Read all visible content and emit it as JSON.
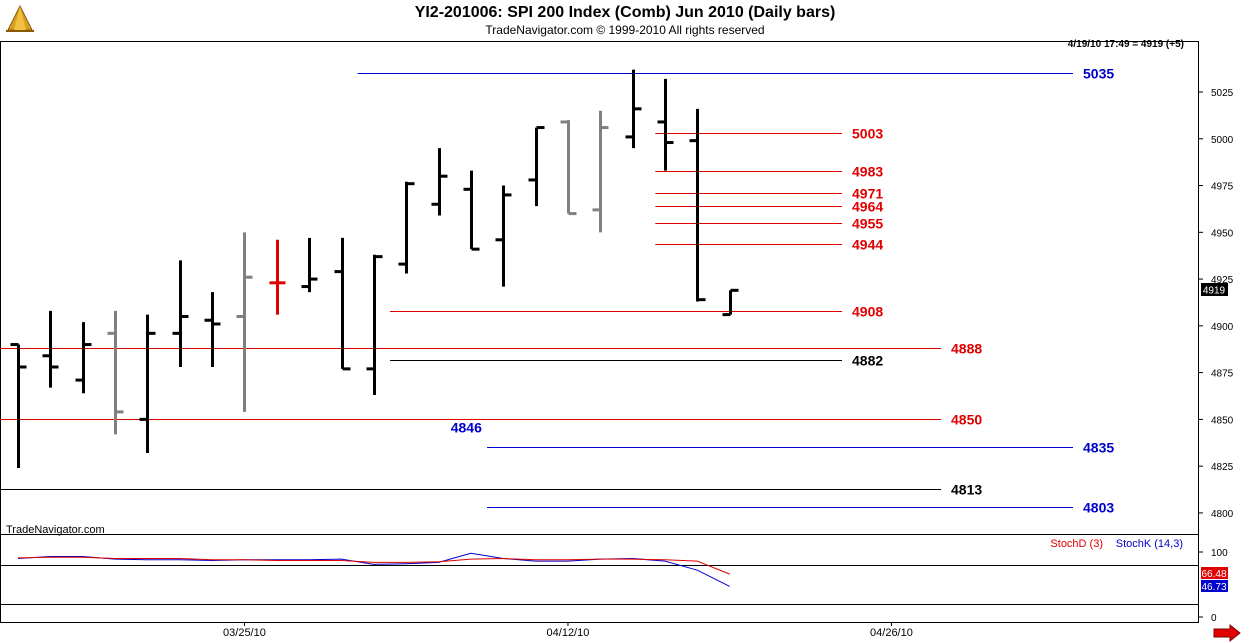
{
  "title": "YI2-201006:  SPI 200 Index (Comb) Jun 2010  (Daily bars)",
  "subtitle": "TradeNavigator.com © 1999-2010 All rights reserved",
  "quote_readout": "4/19/10 17:49 = 4919 (+5)",
  "watermark": "TradeNavigator.com",
  "last_price_label": "4919",
  "icons": {
    "logo": "pyramid-logo-icon",
    "scroll": "arrow-right-icon"
  },
  "colors": {
    "up": "#000000",
    "neutral": "#808080",
    "highlight": "#e00000",
    "level_red": "#e00000",
    "level_blue": "#0000cc",
    "level_black": "#000000",
    "stochD": "#e00000",
    "stochK": "#0000cc"
  },
  "chart_data": {
    "type": "ohlc",
    "price_axis": {
      "ylim": [
        4793,
        5048
      ],
      "ticks": [
        4800,
        4825,
        4850,
        4875,
        4900,
        4925,
        4950,
        4975,
        5000,
        5025
      ]
    },
    "date_labels": [
      {
        "label": "03/25/10",
        "bar": 7
      },
      {
        "label": "04/12/10",
        "bar": 17
      },
      {
        "label": "04/26/10",
        "bar": 27
      }
    ],
    "bars": [
      {
        "o": 4890,
        "h": 4890,
        "l": 4824,
        "c": 4878,
        "color": "up"
      },
      {
        "o": 4884,
        "h": 4908,
        "l": 4867,
        "c": 4878,
        "color": "up"
      },
      {
        "o": 4871,
        "h": 4902,
        "l": 4864,
        "c": 4890,
        "color": "up"
      },
      {
        "o": 4896,
        "h": 4908,
        "l": 4842,
        "c": 4854,
        "color": "neutral"
      },
      {
        "o": 4850,
        "h": 4906,
        "l": 4832,
        "c": 4896,
        "color": "up"
      },
      {
        "o": 4896,
        "h": 4935,
        "l": 4878,
        "c": 4905,
        "color": "up"
      },
      {
        "o": 4903,
        "h": 4918,
        "l": 4878,
        "c": 4901,
        "color": "up"
      },
      {
        "o": 4905,
        "h": 4950,
        "l": 4854,
        "c": 4926,
        "color": "neutral"
      },
      {
        "o": 4923,
        "h": 4946,
        "l": 4906,
        "c": 4923,
        "color": "highlight"
      },
      {
        "o": 4921,
        "h": 4947,
        "l": 4918,
        "c": 4925,
        "color": "up"
      },
      {
        "o": 4929,
        "h": 4947,
        "l": 4877,
        "c": 4877,
        "color": "up"
      },
      {
        "o": 4877,
        "h": 4938,
        "l": 4863,
        "c": 4937,
        "color": "up"
      },
      {
        "o": 4933,
        "h": 4977,
        "l": 4928,
        "c": 4976,
        "color": "up"
      },
      {
        "o": 4965,
        "h": 4995,
        "l": 4959,
        "c": 4980,
        "color": "up"
      },
      {
        "o": 4973,
        "h": 4983,
        "l": 4941,
        "c": 4941,
        "color": "up"
      },
      {
        "o": 4946,
        "h": 4975,
        "l": 4921,
        "c": 4970,
        "color": "up"
      },
      {
        "o": 4978,
        "h": 5006,
        "l": 4964,
        "c": 5006,
        "color": "up"
      },
      {
        "o": 5009,
        "h": 5010,
        "l": 4960,
        "c": 4960,
        "color": "neutral"
      },
      {
        "o": 4962,
        "h": 5015,
        "l": 4950,
        "c": 5006,
        "color": "neutral"
      },
      {
        "o": 5001,
        "h": 5037,
        "l": 4995,
        "c": 5016,
        "color": "up"
      },
      {
        "o": 5009,
        "h": 5032,
        "l": 4983,
        "c": 4998,
        "color": "up"
      },
      {
        "o": 4999,
        "h": 5016,
        "l": 4913,
        "c": 4914,
        "color": "up"
      },
      {
        "o": 4906,
        "h": 4919,
        "l": 4906,
        "c": 4919,
        "color": "up"
      }
    ],
    "levels": [
      {
        "value": 5035,
        "label": "5035",
        "color": "blue",
        "from_bar": 10.5,
        "to_bar": 24.2,
        "label_bar": 24.9
      },
      {
        "value": 5003,
        "label": "5003",
        "color": "red",
        "from_bar": 19.7,
        "to_bar": 19.9,
        "extent": "right",
        "label_bar": 19.8
      },
      {
        "value": 4983,
        "label": "4983",
        "color": "red",
        "from_bar": 19.7,
        "extent": "short",
        "label_bar": 19.8
      },
      {
        "value": 4971,
        "label": "4971",
        "color": "red",
        "from_bar": 19.7,
        "extent": "short",
        "label_bar": 19.8
      },
      {
        "value": 4964,
        "label": "4964",
        "color": "red",
        "from_bar": 19.7,
        "extent": "short",
        "label_bar": 19.8
      },
      {
        "value": 4955,
        "label": "4955",
        "color": "red",
        "from_bar": 19.7,
        "extent": "short",
        "label_bar": 19.8
      },
      {
        "value": 4944,
        "label": "4944",
        "color": "red",
        "from_bar": 19.7,
        "extent": "short",
        "label_bar": 19.8
      },
      {
        "value": 4908,
        "label": "4908",
        "color": "red",
        "from_bar": 11.5,
        "extent": "short",
        "label_bar": 19.8
      },
      {
        "value": 4888,
        "label": "4888",
        "color": "red",
        "from_bar": -0.6,
        "extent": "mid",
        "label_bar": 21.4
      },
      {
        "value": 4882,
        "label": "4882",
        "color": "black",
        "from_bar": 11.5,
        "extent": "short",
        "label_bar": 19.8
      },
      {
        "value": 4850,
        "label": "4850",
        "color": "red",
        "from_bar": -0.6,
        "extent": "mid",
        "label_bar": 21.4
      },
      {
        "value": 4846,
        "label": "4846",
        "color": "blue",
        "from_bar": 13.5,
        "extent": "label_only",
        "label_bar": 13.5
      },
      {
        "value": 4835,
        "label": "4835",
        "color": "blue",
        "from_bar": 14.5,
        "extent": "long",
        "label_bar": 24.9
      },
      {
        "value": 4813,
        "label": "4813",
        "color": "black",
        "from_bar": -0.6,
        "extent": "mid",
        "label_bar": 21.4
      },
      {
        "value": 4803,
        "label": "4803",
        "color": "blue",
        "from_bar": 14.5,
        "extent": "long",
        "label_bar": 24.9
      }
    ],
    "stochastic": {
      "legend": [
        "StochD (3)",
        "StochK (14,3)"
      ],
      "ticks": [
        100,
        0
      ],
      "ylim": [
        0,
        100
      ],
      "reference_levels": [
        80,
        20
      ],
      "last_values": {
        "d": "66.48",
        "k": "46.73"
      },
      "d_values": [
        91,
        92,
        92,
        90,
        90,
        90,
        88,
        88,
        87,
        87,
        87,
        84,
        84,
        85,
        89,
        90,
        88,
        88,
        89,
        89,
        88,
        86,
        66
      ],
      "k_values": [
        90,
        93,
        93,
        89,
        88,
        88,
        87,
        88,
        88,
        88,
        89,
        81,
        82,
        84,
        98,
        90,
        86,
        86,
        89,
        90,
        86,
        72,
        47
      ]
    }
  }
}
